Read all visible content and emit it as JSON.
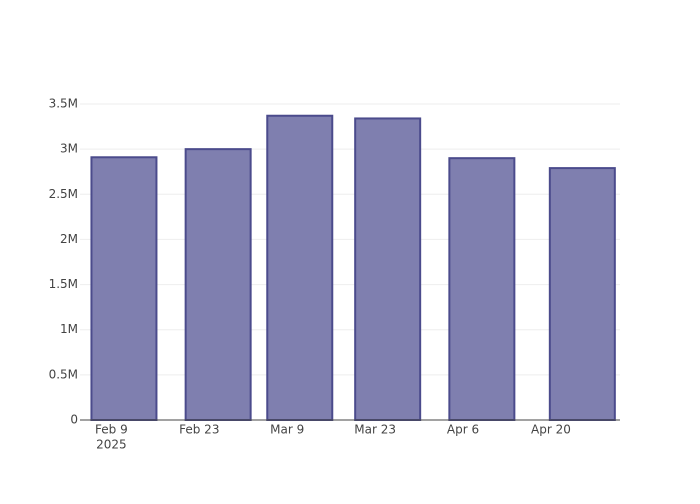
{
  "chart_data": {
    "type": "bar",
    "x": [
      "2025-02-11",
      "2025-02-26",
      "2025-03-11",
      "2025-03-25",
      "2025-04-09",
      "2025-04-25"
    ],
    "values": [
      2910000,
      3000000,
      3370000,
      3340000,
      2900000,
      2790000
    ],
    "color": "#7f7faf",
    "xlim": [
      "2025-02-04",
      "2025-05-01"
    ],
    "xticks": [
      {
        "value": "2025-02-09",
        "label": "Feb 9"
      },
      {
        "value": "2025-02-23",
        "label": "Feb 23"
      },
      {
        "value": "2025-03-09",
        "label": "Mar 9"
      },
      {
        "value": "2025-03-23",
        "label": "Mar 23"
      },
      {
        "value": "2025-04-06",
        "label": "Apr 6"
      },
      {
        "value": "2025-04-20",
        "label": "Apr 20"
      }
    ],
    "xtick_year": "2025",
    "ylim": [
      0,
      3500000
    ],
    "yticks": [
      0,
      {
        "value": 500000,
        "label": "0.5M"
      },
      {
        "value": 1000000,
        "label": "1M"
      },
      {
        "value": 1500000,
        "label": "1.5M"
      },
      {
        "value": 2000000,
        "label": "2M"
      },
      {
        "value": 2500000,
        "label": "2.5M"
      },
      {
        "value": 3000000,
        "label": "3M"
      },
      {
        "value": 3500000,
        "label": "3.5M"
      }
    ],
    "grid": true
  }
}
